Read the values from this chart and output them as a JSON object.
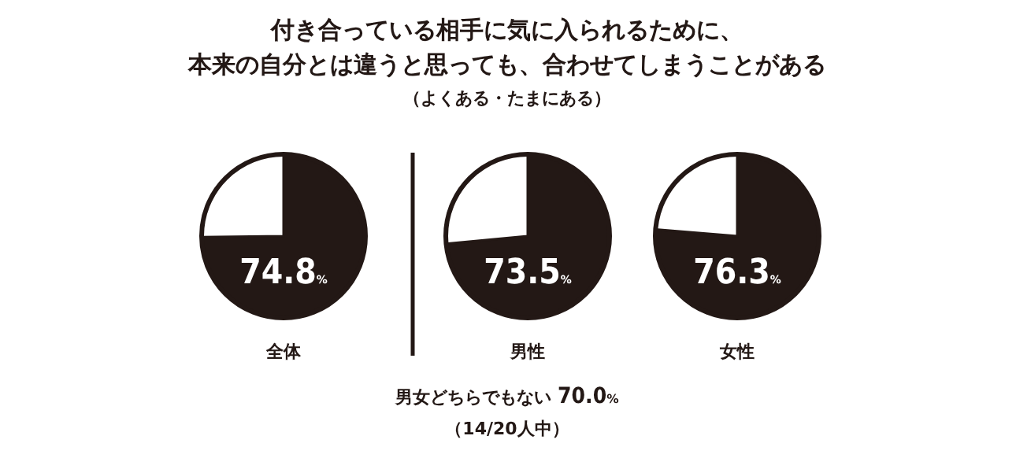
{
  "chart_data": [
    {
      "type": "other",
      "title": "付き合っている相手に気に入られるために、",
      "subtitle": "本来の自分とは違うと思っても、合わせてしまうことがある",
      "annotations": [
        "（よくある・たまにある）"
      ]
    },
    {
      "type": "pie",
      "title": "全体",
      "categories": [
        null,
        null
      ],
      "values": [
        74.8,
        25.2
      ],
      "colors": [
        "#231815",
        "#ffffff"
      ],
      "value_labels": [
        "74.8%",
        null
      ]
    },
    {
      "type": "pie",
      "title": "男性",
      "categories": [
        null,
        null
      ],
      "values": [
        73.5,
        26.5
      ],
      "colors": [
        "#231815",
        "#ffffff"
      ],
      "value_labels": [
        "73.5%",
        null
      ]
    },
    {
      "type": "pie",
      "title": "女性",
      "categories": [
        null,
        null
      ],
      "values": [
        76.3,
        23.7
      ],
      "colors": [
        "#231815",
        "#ffffff"
      ],
      "value_labels": [
        "76.3%",
        null
      ]
    },
    {
      "type": "other",
      "annotations": [
        "男女どちらでもない 70.0%",
        "（14/20人中）"
      ]
    }
  ]
}
